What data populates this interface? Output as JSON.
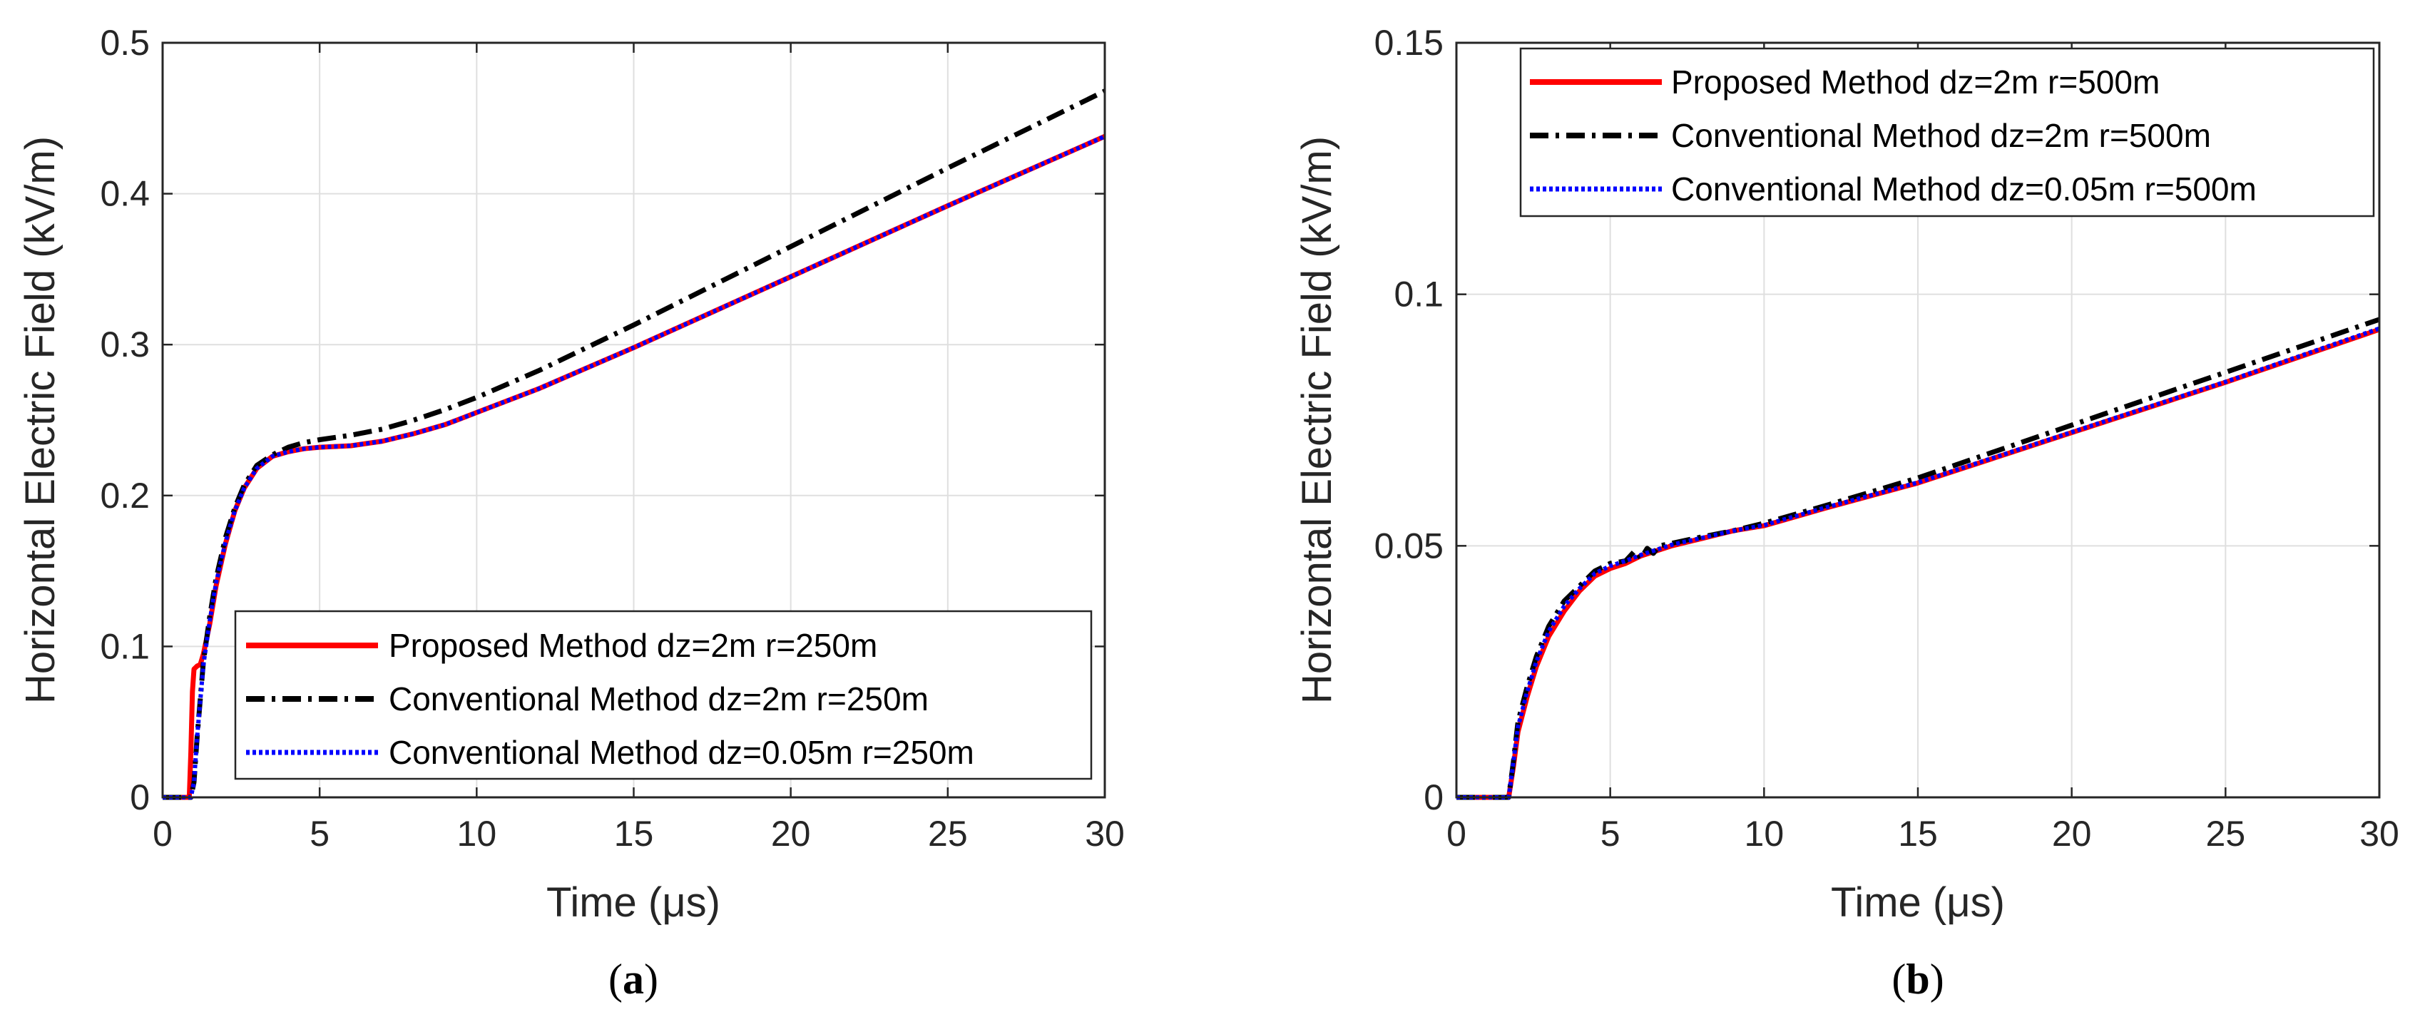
{
  "chart_data": [
    {
      "type": "line",
      "caption_open": "(",
      "caption": "a",
      "caption_close": ")",
      "xlabel": "Time (μs)",
      "ylabel": "Horizontal Electric Field (kV/m)",
      "xlim": [
        0,
        30
      ],
      "ylim": [
        0,
        0.5
      ],
      "xticks": [
        "0",
        "5",
        "10",
        "15",
        "20",
        "25",
        "30"
      ],
      "yticks": [
        "0",
        "0.1",
        "0.2",
        "0.3",
        "0.4",
        "0.5"
      ],
      "grid": true,
      "legend_position": "bottom-right",
      "series": [
        {
          "name": "Proposed Method dz=2m r=250m",
          "color": "#ff0000",
          "style": "solid",
          "x": [
            0,
            0.85,
            0.9,
            0.95,
            1.0,
            1.05,
            1.1,
            1.2,
            1.3,
            1.5,
            1.7,
            2.0,
            2.3,
            2.6,
            3.0,
            3.5,
            4.0,
            4.5,
            5.0,
            6.0,
            7.0,
            8.0,
            9.0,
            10.0,
            12.0,
            15.0,
            20.0,
            25.0,
            30.0
          ],
          "y": [
            0,
            0,
            0.03,
            0.07,
            0.085,
            0.086,
            0.087,
            0.088,
            0.095,
            0.115,
            0.14,
            0.168,
            0.19,
            0.205,
            0.218,
            0.226,
            0.229,
            0.231,
            0.232,
            0.233,
            0.236,
            0.241,
            0.247,
            0.255,
            0.271,
            0.298,
            0.345,
            0.392,
            0.438
          ]
        },
        {
          "name": "Conventional Method dz=2m r=250m",
          "color": "#000000",
          "style": "dashdot",
          "x": [
            0,
            0.9,
            1.0,
            1.1,
            1.3,
            1.5,
            1.7,
            2.0,
            2.3,
            2.6,
            3.0,
            3.5,
            4.0,
            4.5,
            5.0,
            6.0,
            7.0,
            8.0,
            9.0,
            10.0,
            12.0,
            15.0,
            20.0,
            25.0,
            30.0
          ],
          "y": [
            0,
            0,
            0.01,
            0.04,
            0.09,
            0.12,
            0.145,
            0.172,
            0.192,
            0.207,
            0.22,
            0.227,
            0.232,
            0.235,
            0.237,
            0.24,
            0.244,
            0.25,
            0.257,
            0.265,
            0.283,
            0.313,
            0.365,
            0.417,
            0.468
          ]
        },
        {
          "name": "Conventional Method dz=0.05m r=250m",
          "color": "#0000ff",
          "style": "dotted",
          "x": [
            0,
            0.9,
            1.0,
            1.1,
            1.3,
            1.5,
            1.7,
            2.0,
            2.3,
            2.6,
            3.0,
            3.5,
            4.0,
            4.5,
            5.0,
            6.0,
            7.0,
            8.0,
            9.0,
            10.0,
            12.0,
            15.0,
            20.0,
            25.0,
            30.0
          ],
          "y": [
            0,
            0,
            0.01,
            0.04,
            0.088,
            0.117,
            0.142,
            0.169,
            0.19,
            0.205,
            0.218,
            0.226,
            0.229,
            0.231,
            0.232,
            0.233,
            0.236,
            0.241,
            0.247,
            0.255,
            0.271,
            0.298,
            0.345,
            0.392,
            0.438
          ]
        }
      ]
    },
    {
      "type": "line",
      "caption_open": "(",
      "caption": "b",
      "caption_close": ")",
      "xlabel": "Time (μs)",
      "ylabel": "Horizontal Electric Field (kV/m)",
      "xlim": [
        0,
        30
      ],
      "ylim": [
        0,
        0.15
      ],
      "xticks": [
        "0",
        "5",
        "10",
        "15",
        "20",
        "25",
        "30"
      ],
      "yticks": [
        "0",
        "0.05",
        "0.1",
        "0.15"
      ],
      "grid": true,
      "legend_position": "top-left",
      "series": [
        {
          "name": "Proposed Method dz=2m r=500m",
          "color": "#ff0000",
          "style": "solid",
          "x": [
            0,
            1.7,
            1.85,
            2.0,
            2.3,
            2.6,
            3.0,
            3.5,
            4.0,
            4.5,
            5.0,
            5.5,
            6.0,
            7.0,
            8.0,
            9.0,
            10.0,
            12.0,
            15.0,
            20.0,
            25.0,
            30.0
          ],
          "y": [
            0,
            0,
            0.006,
            0.013,
            0.02,
            0.026,
            0.032,
            0.037,
            0.041,
            0.044,
            0.0455,
            0.0465,
            0.048,
            0.05,
            0.0515,
            0.053,
            0.054,
            0.0575,
            0.0625,
            0.0725,
            0.0825,
            0.093
          ]
        },
        {
          "name": "Conventional Method dz=2m r=500m",
          "color": "#000000",
          "style": "dashdot",
          "x": [
            0,
            1.7,
            1.85,
            2.0,
            2.3,
            2.6,
            3.0,
            3.5,
            4.0,
            4.5,
            5.0,
            5.5,
            5.8,
            6.0,
            6.2,
            6.4,
            6.6,
            7.0,
            8.0,
            9.0,
            10.0,
            12.0,
            15.0,
            20.0,
            25.0,
            30.0
          ],
          "y": [
            0,
            0,
            0.007,
            0.015,
            0.022,
            0.028,
            0.034,
            0.039,
            0.042,
            0.045,
            0.0465,
            0.047,
            0.049,
            0.0475,
            0.0495,
            0.0485,
            0.05,
            0.0505,
            0.0518,
            0.053,
            0.0545,
            0.058,
            0.0635,
            0.074,
            0.0845,
            0.095
          ]
        },
        {
          "name": "Conventional Method dz=0.05m r=500m",
          "color": "#0000ff",
          "style": "dotted",
          "x": [
            0,
            1.7,
            1.85,
            2.0,
            2.3,
            2.6,
            3.0,
            3.5,
            4.0,
            4.5,
            5.0,
            5.5,
            6.0,
            7.0,
            8.0,
            9.0,
            10.0,
            12.0,
            15.0,
            20.0,
            25.0,
            30.0
          ],
          "y": [
            0,
            0,
            0.007,
            0.014,
            0.021,
            0.027,
            0.033,
            0.038,
            0.0415,
            0.0445,
            0.046,
            0.047,
            0.0482,
            0.0502,
            0.0516,
            0.053,
            0.0541,
            0.0576,
            0.0626,
            0.0726,
            0.0826,
            0.0932
          ]
        }
      ]
    }
  ]
}
